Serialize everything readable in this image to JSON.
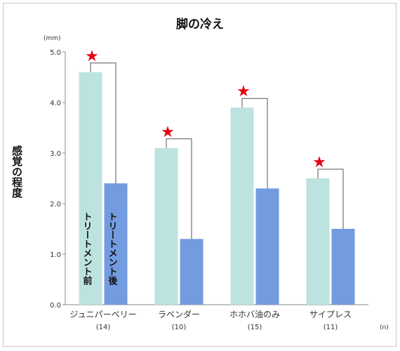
{
  "chart_data": {
    "type": "bar",
    "title": "脚の冷え",
    "ylabel": "感覚の程度",
    "y_unit": "(mm)",
    "n_unit": "(n)",
    "ylim": [
      0,
      5
    ],
    "yticks": [
      "0.0",
      "1.0",
      "2.0",
      "3.0",
      "4.0",
      "5.0"
    ],
    "categories": [
      "ジュニパーベリー",
      "ラベンダー",
      "ホホバ油のみ",
      "サイプレス"
    ],
    "counts": [
      "(14)",
      "(10)",
      "(15)",
      "(11)"
    ],
    "series": [
      {
        "name": "トリートメント前",
        "values": [
          4.6,
          3.1,
          3.9,
          2.5
        ],
        "color": "#bde3e0"
      },
      {
        "name": "トリートメント後",
        "values": [
          2.4,
          1.3,
          2.3,
          1.5
        ],
        "color": "#739ce0"
      }
    ],
    "significance_marker": "★",
    "marker_color": "#e60012",
    "bracket_color": "#555555",
    "axis_color": "#888888",
    "grid": false
  }
}
